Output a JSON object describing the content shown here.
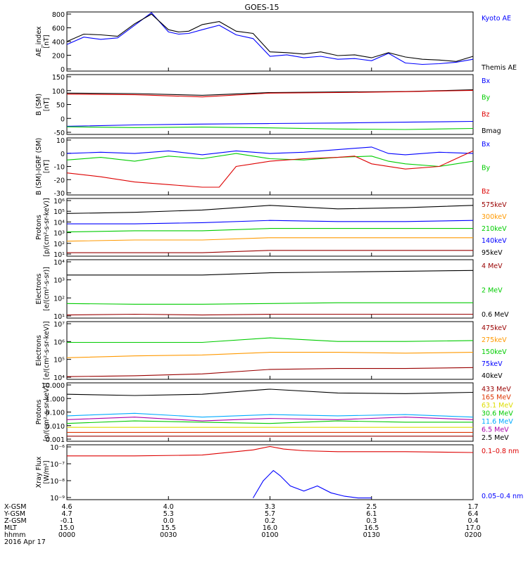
{
  "figure": {
    "title": "GOES-15",
    "date": "2016 Apr 17",
    "xaxis_labels": [
      "X-GSM",
      "Y-GSM",
      "Z-GSM",
      "MLT",
      "hhmm"
    ],
    "xaxis_rows": [
      [
        "4.6",
        "4.0",
        "3.3",
        "2.5",
        "1.7"
      ],
      [
        "4.7",
        "5.3",
        "5.7",
        "6.1",
        "6.4"
      ],
      [
        "-0.1",
        "0.0",
        "0.2",
        "0.3",
        "0.4"
      ],
      [
        "15.0",
        "15.5",
        "16.0",
        "16.5",
        "17.0"
      ],
      [
        "0000",
        "0030",
        "0100",
        "0130",
        "0200"
      ]
    ]
  },
  "chart_data": [
    {
      "type": "line",
      "id": "ae",
      "ylabel": "AE_index\n[nT]",
      "yticks": [
        "800",
        "600",
        "400",
        "200",
        "0"
      ],
      "ylim": [
        0,
        800
      ],
      "legend": [
        {
          "name": "Kyoto AE",
          "color": "#0000ff"
        },
        {
          "name": "Themis AE",
          "color": "#000000"
        }
      ],
      "series": [
        {
          "name": "Kyoto AE",
          "color": "#0000ff",
          "x": [
            0,
            5,
            10,
            15,
            20,
            25,
            30,
            33,
            36,
            40,
            45,
            50,
            55,
            60,
            65,
            70,
            75,
            80,
            85,
            90,
            95,
            100,
            105,
            110,
            115,
            120
          ],
          "y": [
            360,
            460,
            430,
            450,
            620,
            790,
            530,
            500,
            510,
            560,
            620,
            490,
            440,
            200,
            220,
            180,
            200,
            160,
            170,
            140,
            240,
            110,
            90,
            100,
            120,
            160
          ]
        },
        {
          "name": "Themis AE",
          "color": "#000000",
          "x": [
            0,
            5,
            10,
            15,
            20,
            25,
            30,
            33,
            36,
            40,
            45,
            50,
            55,
            60,
            65,
            70,
            75,
            80,
            85,
            90,
            95,
            100,
            105,
            110,
            115,
            120
          ],
          "y": [
            400,
            500,
            490,
            470,
            640,
            770,
            560,
            530,
            540,
            630,
            670,
            540,
            510,
            260,
            250,
            230,
            260,
            210,
            220,
            180,
            250,
            190,
            160,
            150,
            130,
            200
          ]
        }
      ]
    },
    {
      "type": "line",
      "id": "bsm",
      "ylabel": "B (SM)\n[nT]",
      "yticks": [
        "150",
        "100",
        "50",
        "0",
        "-50"
      ],
      "ylim": [
        -60,
        160
      ],
      "legend": [
        {
          "name": "Bx",
          "color": "#0000ff"
        },
        {
          "name": "By",
          "color": "#00cc00"
        },
        {
          "name": "Bz",
          "color": "#dd0000"
        },
        {
          "name": "Bmag",
          "color": "#000000"
        }
      ],
      "series": [
        {
          "name": "Bmag",
          "color": "#000000",
          "x": [
            0,
            20,
            40,
            60,
            80,
            100,
            120
          ],
          "y": [
            92,
            90,
            84,
            94,
            96,
            98,
            104
          ]
        },
        {
          "name": "Bz",
          "color": "#dd0000",
          "x": [
            0,
            20,
            40,
            60,
            80,
            100,
            120
          ],
          "y": [
            88,
            86,
            78,
            92,
            94,
            97,
            102
          ]
        },
        {
          "name": "Bx",
          "color": "#0000ff",
          "x": [
            0,
            20,
            40,
            60,
            80,
            100,
            120
          ],
          "y": [
            -30,
            -25,
            -22,
            -20,
            -18,
            -15,
            -12
          ]
        },
        {
          "name": "By",
          "color": "#00cc00",
          "x": [
            0,
            20,
            40,
            60,
            80,
            100,
            120
          ],
          "y": [
            -32,
            -35,
            -33,
            -36,
            -40,
            -42,
            -38
          ]
        }
      ]
    },
    {
      "type": "line",
      "id": "bigrf",
      "ylabel": "B (SM)-IGRF (SM)\n[nT]",
      "yticks": [
        "10",
        "0",
        "-10",
        "-20",
        "-30"
      ],
      "ylim": [
        -32,
        12
      ],
      "legend": [
        {
          "name": "Bx",
          "color": "#0000ff"
        },
        {
          "name": "By",
          "color": "#00cc00"
        },
        {
          "name": "Bz",
          "color": "#dd0000"
        }
      ],
      "series": [
        {
          "name": "Bx",
          "color": "#0000ff",
          "x": [
            0,
            10,
            20,
            30,
            40,
            50,
            60,
            70,
            80,
            90,
            95,
            100,
            110,
            120
          ],
          "y": [
            0,
            1,
            0,
            2,
            -1,
            2,
            0,
            1,
            3,
            5,
            0,
            -1,
            1,
            0
          ]
        },
        {
          "name": "By",
          "color": "#00cc00",
          "x": [
            0,
            10,
            20,
            30,
            40,
            50,
            60,
            70,
            80,
            90,
            95,
            100,
            110,
            120
          ],
          "y": [
            -5,
            -3,
            -6,
            -2,
            -4,
            0,
            -4,
            -5,
            -3,
            -2,
            -6,
            -8,
            -10,
            -6
          ]
        },
        {
          "name": "Bz",
          "color": "#dd0000",
          "x": [
            0,
            10,
            20,
            30,
            40,
            45,
            50,
            55,
            60,
            70,
            80,
            85,
            90,
            100,
            110,
            120
          ],
          "y": [
            -15,
            -18,
            -22,
            -24,
            -26,
            -26,
            -10,
            -8,
            -6,
            -4,
            -3,
            -2,
            -8,
            -12,
            -10,
            2
          ]
        }
      ]
    },
    {
      "type": "line",
      "id": "protons_hi",
      "log": true,
      "ylabel": "Protons\n[p/(cm²-s-sr-keV)]",
      "yticks": [
        "10⁶",
        "10⁵",
        "10⁴",
        "10³",
        "10²",
        "10¹"
      ],
      "ylim": [
        1,
        6
      ],
      "legend": [
        {
          "name": "575keV",
          "color": "#990000"
        },
        {
          "name": "300keV",
          "color": "#ff9900"
        },
        {
          "name": "210keV",
          "color": "#00cc00"
        },
        {
          "name": "140keV",
          "color": "#0000ff"
        },
        {
          "name": "95keV",
          "color": "#000000"
        }
      ],
      "series": [
        {
          "name": "95keV",
          "color": "#000000",
          "x": [
            0,
            20,
            40,
            60,
            80,
            100,
            120
          ],
          "y": [
            4.7,
            4.8,
            5.0,
            5.4,
            5.1,
            5.2,
            5.4
          ]
        },
        {
          "name": "140keV",
          "color": "#0000ff",
          "x": [
            0,
            20,
            40,
            60,
            80,
            100,
            120
          ],
          "y": [
            3.8,
            3.8,
            3.9,
            4.1,
            4.0,
            4.0,
            4.1
          ]
        },
        {
          "name": "210keV",
          "color": "#00cc00",
          "x": [
            0,
            20,
            40,
            60,
            80,
            100,
            120
          ],
          "y": [
            3.1,
            3.2,
            3.2,
            3.4,
            3.4,
            3.4,
            3.4
          ]
        },
        {
          "name": "300keV",
          "color": "#ff9900",
          "x": [
            0,
            20,
            40,
            60,
            80,
            100,
            120
          ],
          "y": [
            2.3,
            2.4,
            2.4,
            2.6,
            2.6,
            2.6,
            2.6
          ]
        },
        {
          "name": "575keV",
          "color": "#990000",
          "x": [
            0,
            20,
            40,
            60,
            80,
            100,
            120
          ],
          "y": [
            1.3,
            1.3,
            1.3,
            1.5,
            1.5,
            1.5,
            1.5
          ]
        }
      ]
    },
    {
      "type": "line",
      "id": "electrons_hi",
      "log": true,
      "ylabel": "Electrons\n[e/(cm²-s-sr)]",
      "yticks": [
        "10⁴",
        "10³",
        "10²",
        "10¹"
      ],
      "ylim": [
        0.8,
        4.6
      ],
      "legend": [
        {
          "name": "4 MeV",
          "color": "#990000"
        },
        {
          "name": "2 MeV",
          "color": "#00cc00"
        },
        {
          "name": "0.6 MeV",
          "color": "#000000"
        }
      ],
      "series": [
        {
          "name": "0.6 MeV",
          "color": "#000000",
          "x": [
            0,
            20,
            40,
            60,
            80,
            100,
            120
          ],
          "y": [
            3.6,
            3.6,
            3.6,
            3.75,
            3.8,
            3.85,
            3.9
          ]
        },
        {
          "name": "2 MeV",
          "color": "#00cc00",
          "x": [
            0,
            20,
            40,
            60,
            80,
            100,
            120
          ],
          "y": [
            1.75,
            1.7,
            1.7,
            1.75,
            1.8,
            1.8,
            1.8
          ]
        },
        {
          "name": "4 MeV",
          "color": "#990000",
          "x": [
            0,
            20,
            40,
            60,
            80,
            100,
            120
          ],
          "y": [
            1.0,
            1.05,
            1.0,
            1.05,
            1.05,
            1.05,
            1.05
          ]
        }
      ]
    },
    {
      "type": "line",
      "id": "electrons_lo",
      "log": true,
      "ylabel": "Electrons\n[e/(cm²-s-sr-keV)]",
      "yticks": [
        "10⁷",
        "10⁶",
        "10⁵",
        "10⁴"
      ],
      "ylim": [
        3.9,
        7.1
      ],
      "legend": [
        {
          "name": "475keV",
          "color": "#990000"
        },
        {
          "name": "275keV",
          "color": "#ff9900"
        },
        {
          "name": "150keV",
          "color": "#00cc00"
        },
        {
          "name": "75keV",
          "color": "#0000ff"
        },
        {
          "name": "40keV",
          "color": "#000000"
        }
      ],
      "series": [
        {
          "name": "150keV",
          "color": "#00cc00",
          "x": [
            0,
            20,
            40,
            60,
            80,
            100,
            120
          ],
          "y": [
            5.95,
            5.95,
            5.95,
            6.2,
            6.0,
            6.0,
            6.05
          ]
        },
        {
          "name": "275keV",
          "color": "#ff9900",
          "x": [
            0,
            20,
            40,
            60,
            80,
            100,
            120
          ],
          "y": [
            5.1,
            5.2,
            5.25,
            5.4,
            5.4,
            5.35,
            5.4
          ]
        },
        {
          "name": "475keV",
          "color": "#990000",
          "x": [
            0,
            20,
            40,
            60,
            80,
            100,
            120
          ],
          "y": [
            4.05,
            4.1,
            4.2,
            4.45,
            4.5,
            4.5,
            4.55
          ]
        }
      ]
    },
    {
      "type": "line",
      "id": "protons_mev",
      "log": true,
      "ylabel": "Protons\n[p/(cm²-s-sr-keV)]",
      "yticks": [
        "10.000",
        "1.000",
        "0.100",
        "0.010",
        "0.001"
      ],
      "ylim": [
        -3.2,
        1.4
      ],
      "legend": [
        {
          "name": "433 MeV",
          "color": "#990000"
        },
        {
          "name": "165 MeV",
          "color": "#dd3300"
        },
        {
          "name": "63.1 MeV",
          "color": "#dddd00"
        },
        {
          "name": "30.6 MeV",
          "color": "#00cc00"
        },
        {
          "name": "11.6 MeV",
          "color": "#00aaff"
        },
        {
          "name": "6.5 MeV",
          "color": "#aa00aa"
        },
        {
          "name": "2.5 MeV",
          "color": "#000000"
        }
      ],
      "series": [
        {
          "name": "2.5 MeV",
          "color": "#000000",
          "x": [
            0,
            20,
            40,
            60,
            80,
            100,
            120
          ],
          "y": [
            0.5,
            0.4,
            0.5,
            0.9,
            0.6,
            0.55,
            0.65
          ]
        },
        {
          "name": "11.6 MeV",
          "color": "#00aaff",
          "x": [
            0,
            20,
            40,
            60,
            80,
            100,
            120
          ],
          "y": [
            -1.2,
            -1.0,
            -1.3,
            -1.1,
            -1.2,
            -1.1,
            -1.3
          ]
        },
        {
          "name": "6.5 MeV",
          "color": "#aa00aa",
          "x": [
            0,
            20,
            40,
            60,
            80,
            100,
            120
          ],
          "y": [
            -1.5,
            -1.3,
            -1.6,
            -1.4,
            -1.5,
            -1.3,
            -1.5
          ]
        },
        {
          "name": "30.6 MeV",
          "color": "#00cc00",
          "x": [
            0,
            20,
            40,
            60,
            80,
            100,
            120
          ],
          "y": [
            -1.8,
            -1.6,
            -1.7,
            -1.8,
            -1.6,
            -1.7,
            -1.7
          ]
        },
        {
          "name": "63.1 MeV",
          "color": "#dddd00",
          "x": [
            0,
            20,
            40,
            60,
            80,
            100,
            120
          ],
          "y": [
            -2.1,
            -2.1,
            -2.1,
            -2.1,
            -2.1,
            -2.1,
            -2.1
          ]
        },
        {
          "name": "165 MeV",
          "color": "#dd3300",
          "x": [
            0,
            20,
            40,
            60,
            80,
            100,
            120
          ],
          "y": [
            -2.5,
            -2.5,
            -2.5,
            -2.5,
            -2.5,
            -2.5,
            -2.5
          ]
        },
        {
          "name": "433 MeV",
          "color": "#990000",
          "x": [
            0,
            20,
            40,
            60,
            80,
            100,
            120
          ],
          "y": [
            -2.8,
            -2.8,
            -2.8,
            -2.8,
            -2.8,
            -2.8,
            -2.8
          ]
        }
      ]
    },
    {
      "type": "line",
      "id": "xray",
      "log": true,
      "ylabel": "Xray Flux\n[W/m²]",
      "yticks": [
        "10⁻⁶",
        "10⁻⁷",
        "10⁻⁸",
        "10⁻⁹"
      ],
      "ylim": [
        -9.1,
        -5.9
      ],
      "legend": [
        {
          "name": "0.1–0.8 nm",
          "color": "#dd0000"
        },
        {
          "name": "0.05–0.4 nm",
          "color": "#0000ff"
        }
      ],
      "series": [
        {
          "name": "0.1–0.8 nm",
          "color": "#dd0000",
          "x": [
            0,
            20,
            40,
            55,
            60,
            64,
            70,
            80,
            100,
            120
          ],
          "y": [
            -6.55,
            -6.55,
            -6.5,
            -6.2,
            -6.0,
            -6.15,
            -6.25,
            -6.3,
            -6.3,
            -6.35
          ]
        },
        {
          "name": "0.05–0.4 nm",
          "color": "#0000ff",
          "x": [
            55,
            58,
            61,
            63,
            66,
            70,
            74,
            78,
            82,
            86,
            90
          ],
          "y": [
            -9.0,
            -8.0,
            -7.4,
            -7.7,
            -8.3,
            -8.6,
            -8.3,
            -8.7,
            -8.9,
            -9.0,
            -9.0
          ]
        }
      ]
    }
  ]
}
